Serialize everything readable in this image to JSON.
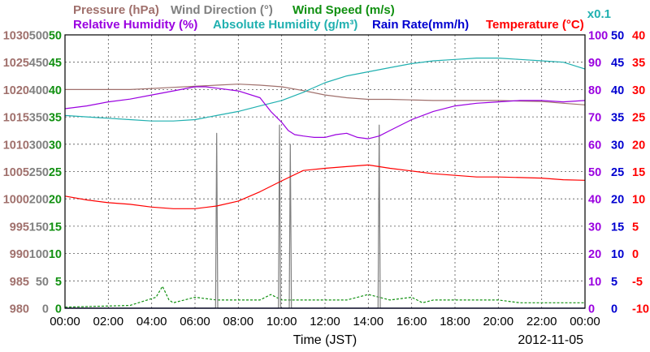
{
  "chart_data": {
    "type": "line",
    "title": "",
    "date_label": "2012-11-05",
    "xlabel": "Time (JST)",
    "x_ticks": [
      "00:00",
      "02:00",
      "04:00",
      "06:00",
      "08:00",
      "10:00",
      "12:00",
      "14:00",
      "16:00",
      "18:00",
      "20:00",
      "22:00",
      "00:00"
    ],
    "xlim": [
      0,
      24
    ],
    "grid": true,
    "legend": [
      {
        "text": "Pressure (hPa)",
        "color": "#a0706c"
      },
      {
        "text": "Wind Direction (°)",
        "color": "#808080"
      },
      {
        "text": "Wind Speed (m/s)",
        "color": "#109010"
      },
      {
        "text": "Relative Humidity (%)",
        "color": "#9a00e0"
      },
      {
        "text": "Absolute Humidity (g/m³)",
        "color": "#20b0b0"
      },
      {
        "text": "Rain Rate(mm/h)",
        "color": "#0000d0"
      },
      {
        "text": "Temperature (°C)",
        "color": "#ff0000"
      }
    ],
    "axes": [
      {
        "name": "Pressure",
        "color": "#a0706c",
        "side": "left",
        "ticks": [
          "1030",
          "1025",
          "1020",
          "1015",
          "1010",
          "1005",
          "1000",
          "995",
          "990",
          "985",
          "980"
        ],
        "ylim": [
          980,
          1030
        ]
      },
      {
        "name": "Wind Direction",
        "color": "#808080",
        "side": "left",
        "ticks": [
          "500",
          "450",
          "400",
          "350",
          "300",
          "250",
          "200",
          "150",
          "100",
          "50",
          "0"
        ],
        "ylim": [
          0,
          500
        ]
      },
      {
        "name": "Wind Speed",
        "color": "#109010",
        "side": "left",
        "ticks": [
          "50",
          "45",
          "40",
          "35",
          "30",
          "25",
          "20",
          "15",
          "10",
          "5",
          "0"
        ],
        "ylim": [
          0,
          50
        ]
      },
      {
        "name": "Humidity",
        "color": "#9a00e0",
        "side": "right",
        "unit_note": "x0.1",
        "unit_note_color": "#20b0b0",
        "ticks": [
          "100",
          "90",
          "80",
          "70",
          "60",
          "50",
          "40",
          "30",
          "20",
          "10",
          "0"
        ],
        "ylim": [
          0,
          100
        ]
      },
      {
        "name": "Rain Rate",
        "color": "#0000d0",
        "side": "right",
        "ticks": [
          "50",
          "45",
          "40",
          "35",
          "30",
          "25",
          "20",
          "15",
          "10",
          "5",
          "0"
        ],
        "ylim": [
          0,
          50
        ]
      },
      {
        "name": "Temperature",
        "color": "#ff0000",
        "side": "right",
        "ticks": [
          "40",
          "35",
          "30",
          "25",
          "20",
          "15",
          "10",
          "5",
          "0",
          "-5",
          "-10"
        ],
        "ylim": [
          -10,
          40
        ]
      }
    ],
    "series": [
      {
        "name": "Pressure (hPa)",
        "color": "#a0706c",
        "ylim": [
          980,
          1030
        ],
        "x": [
          0,
          1,
          2,
          3,
          4,
          5,
          6,
          7,
          8,
          9,
          10,
          11,
          12,
          13,
          14,
          15,
          16,
          17,
          18,
          19,
          20,
          21,
          22,
          23,
          24
        ],
        "values": [
          1020,
          1020,
          1020,
          1020,
          1020.2,
          1020.4,
          1020.6,
          1020.8,
          1021,
          1020.8,
          1020.5,
          1019.8,
          1019,
          1018.5,
          1018.2,
          1018.2,
          1018.1,
          1018,
          1018,
          1018,
          1018,
          1017.9,
          1017.8,
          1017.5,
          1017.2
        ]
      },
      {
        "name": "Relative Humidity (%)",
        "color": "#9a00e0",
        "ylim": [
          0,
          100
        ],
        "x": [
          0,
          1,
          2,
          3,
          4,
          5,
          6,
          6.5,
          7,
          8,
          9,
          9.5,
          10,
          10.3,
          10.6,
          11,
          11.5,
          12,
          12.5,
          13,
          13.5,
          14,
          14.5,
          15,
          16,
          17,
          18,
          19,
          20,
          21,
          22,
          23,
          24
        ],
        "values": [
          73,
          74,
          75.5,
          76.5,
          78,
          79.5,
          81,
          81,
          80.5,
          79.5,
          77,
          72,
          68,
          65,
          63.5,
          63,
          62.5,
          62.5,
          63.5,
          64,
          62.5,
          62,
          63,
          65,
          69,
          72,
          74,
          75,
          75.5,
          76,
          76,
          75.5,
          76
        ]
      },
      {
        "name": "Absolute Humidity (g/m³)",
        "color": "#20b0b0",
        "ylim": [
          0,
          100
        ],
        "x": [
          0,
          1,
          2,
          3,
          4,
          5,
          6,
          7,
          8,
          9,
          10,
          11,
          12,
          13,
          14,
          15,
          16,
          17,
          18,
          19,
          20,
          21,
          22,
          23,
          24
        ],
        "values": [
          70.5,
          70,
          69.5,
          69,
          68.5,
          68.5,
          69,
          70.5,
          72,
          74,
          76,
          79,
          82.5,
          85,
          86.5,
          88,
          89.5,
          90.5,
          91,
          91.5,
          91.5,
          91,
          90.5,
          90,
          87.5
        ]
      },
      {
        "name": "Temperature (°C)",
        "color": "#ff0000",
        "ylim": [
          -10,
          40
        ],
        "x": [
          0,
          1,
          2,
          3,
          4,
          5,
          6,
          7,
          8,
          9,
          10,
          11,
          12,
          13,
          14,
          15,
          16,
          17,
          18,
          19,
          20,
          21,
          22,
          23,
          24
        ],
        "values": [
          10.5,
          9.8,
          9.3,
          9,
          8.5,
          8.2,
          8.2,
          8.7,
          9.6,
          11.3,
          13.3,
          15.2,
          15.6,
          15.9,
          16.2,
          15.6,
          15.1,
          14.6,
          14.3,
          14,
          14,
          13.9,
          13.8,
          13.5,
          13.4
        ]
      },
      {
        "name": "Wind Direction (°)",
        "color": "#808080",
        "ylim": [
          0,
          500
        ],
        "x": [
          0,
          6.95,
          7.0,
          7.05,
          7.15,
          9.85,
          9.9,
          9.95,
          10.0,
          10.35,
          10.4,
          10.45,
          10.55,
          14.45,
          14.5,
          14.55,
          14.65,
          24
        ],
        "values": [
          0,
          0,
          320,
          0,
          0,
          0,
          335,
          0,
          0,
          0,
          300,
          0,
          0,
          0,
          335,
          0,
          0,
          0
        ]
      },
      {
        "name": "Wind Speed (m/s)",
        "color": "#109010",
        "ylim": [
          0,
          50
        ],
        "x": [
          0,
          3,
          4.2,
          4.5,
          4.8,
          5,
          6,
          7,
          9,
          9.5,
          10,
          11,
          12,
          13,
          14,
          14.5,
          15,
          16,
          16.5,
          17,
          18,
          19,
          20,
          21,
          22,
          23,
          24
        ],
        "values": [
          0.2,
          0.5,
          2,
          4,
          1.5,
          1,
          2,
          1.5,
          1.5,
          2.5,
          1.5,
          1.5,
          1.5,
          1.5,
          2.5,
          2,
          1.5,
          2,
          1,
          1.5,
          1.5,
          1.5,
          1.5,
          1,
          1,
          1,
          1
        ]
      },
      {
        "name": "Rain Rate(mm/h)",
        "color": "#0000d0",
        "ylim": [
          0,
          50
        ],
        "x": [
          0,
          24
        ],
        "values": [
          0,
          0
        ]
      }
    ]
  }
}
